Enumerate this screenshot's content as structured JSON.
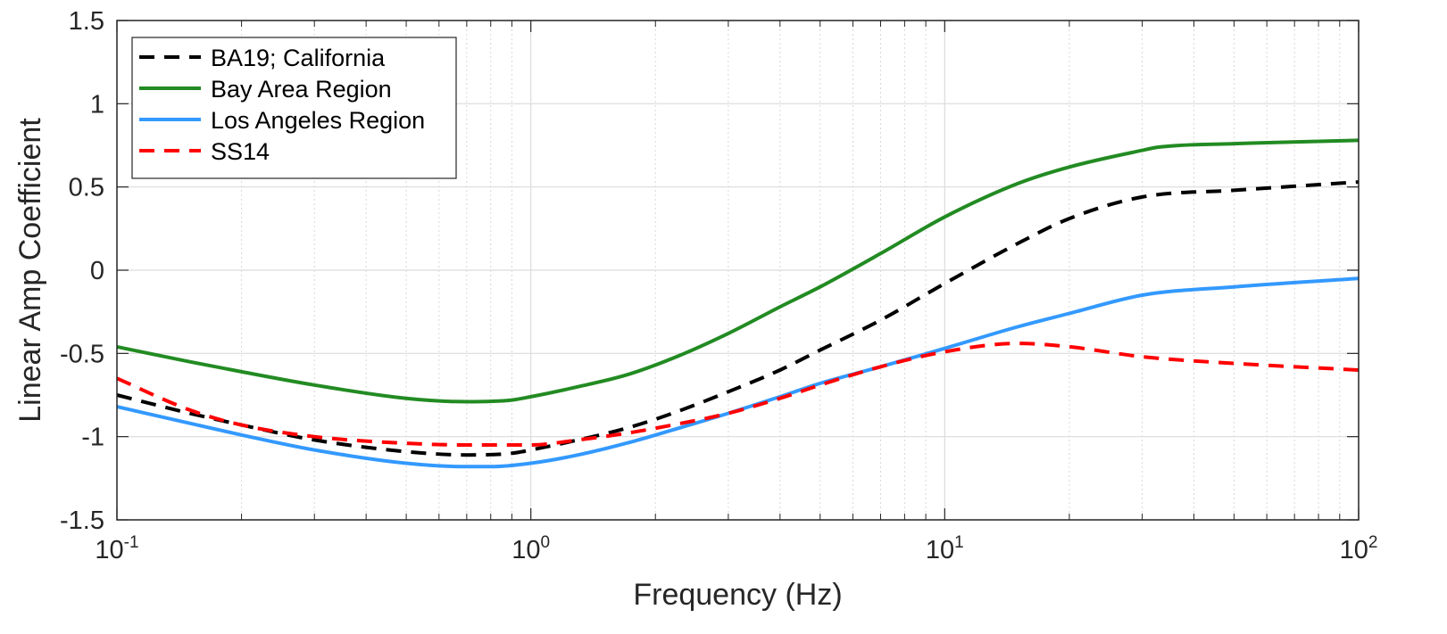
{
  "chart_data": {
    "type": "line",
    "title": "",
    "xlabel": "Frequency (Hz)",
    "ylabel": "Linear Amp Coefficient",
    "xscale": "log",
    "xlim": [
      0.1,
      100
    ],
    "ylim": [
      -1.5,
      1.5
    ],
    "x_ticks": [
      {
        "value": 0.1,
        "base": "10",
        "exp": "-1"
      },
      {
        "value": 1,
        "base": "10",
        "exp": "0"
      },
      {
        "value": 10,
        "base": "10",
        "exp": "1"
      },
      {
        "value": 100,
        "base": "10",
        "exp": "2"
      }
    ],
    "y_ticks": [
      {
        "value": 1.5,
        "label": "1.5"
      },
      {
        "value": 1,
        "label": "1"
      },
      {
        "value": 0.5,
        "label": "0.5"
      },
      {
        "value": 0,
        "label": "0"
      },
      {
        "value": -0.5,
        "label": "-0.5"
      },
      {
        "value": -1,
        "label": "-1"
      },
      {
        "value": -1.5,
        "label": "-1.5"
      }
    ],
    "grid": true,
    "minor_grid_x": true,
    "legend_position": "top-left",
    "series": [
      {
        "name": "BA19; California",
        "color": "#000000",
        "style": "dashed",
        "x": [
          0.1,
          0.15,
          0.2,
          0.3,
          0.5,
          0.7,
          0.9,
          1.0,
          1.3,
          1.7,
          2.2,
          3.0,
          4.0,
          5.0,
          7.0,
          10,
          15,
          20,
          30,
          50,
          100
        ],
        "y": [
          -0.75,
          -0.86,
          -0.93,
          -1.02,
          -1.09,
          -1.11,
          -1.1,
          -1.08,
          -1.02,
          -0.95,
          -0.86,
          -0.73,
          -0.6,
          -0.48,
          -0.3,
          -0.08,
          0.16,
          0.31,
          0.44,
          0.48,
          0.53
        ]
      },
      {
        "name": "Bay Area Region",
        "color": "#228B22",
        "style": "solid",
        "x": [
          0.1,
          0.15,
          0.2,
          0.3,
          0.5,
          0.7,
          0.9,
          1.0,
          1.3,
          1.7,
          2.2,
          3.0,
          4.0,
          5.0,
          7.0,
          10,
          15,
          20,
          30,
          33,
          50,
          100
        ],
        "y": [
          -0.46,
          -0.55,
          -0.61,
          -0.69,
          -0.77,
          -0.79,
          -0.78,
          -0.76,
          -0.7,
          -0.63,
          -0.53,
          -0.38,
          -0.22,
          -0.1,
          0.1,
          0.32,
          0.52,
          0.62,
          0.72,
          0.74,
          0.76,
          0.78
        ]
      },
      {
        "name": "Los Angeles Region",
        "color": "#3399FF",
        "style": "solid",
        "x": [
          0.1,
          0.15,
          0.2,
          0.3,
          0.5,
          0.7,
          0.8,
          1.0,
          1.3,
          1.7,
          2.2,
          3.0,
          4.0,
          5.0,
          7.0,
          10,
          15,
          20,
          30,
          50,
          100
        ],
        "y": [
          -0.82,
          -0.92,
          -0.99,
          -1.08,
          -1.16,
          -1.18,
          -1.18,
          -1.16,
          -1.11,
          -1.04,
          -0.96,
          -0.86,
          -0.76,
          -0.68,
          -0.58,
          -0.47,
          -0.34,
          -0.26,
          -0.15,
          -0.1,
          -0.05
        ]
      },
      {
        "name": "SS14",
        "color": "#FF0000",
        "style": "dashed",
        "x": [
          0.1,
          0.15,
          0.2,
          0.3,
          0.5,
          0.7,
          0.9,
          1.0,
          1.3,
          1.7,
          2.2,
          3.0,
          4.0,
          5.0,
          7.0,
          10,
          15,
          20,
          30,
          50,
          100
        ],
        "y": [
          -0.65,
          -0.84,
          -0.93,
          -1.0,
          -1.04,
          -1.05,
          -1.05,
          -1.05,
          -1.02,
          -0.98,
          -0.93,
          -0.86,
          -0.77,
          -0.69,
          -0.58,
          -0.49,
          -0.44,
          -0.46,
          -0.52,
          -0.56,
          -0.6
        ]
      }
    ]
  }
}
